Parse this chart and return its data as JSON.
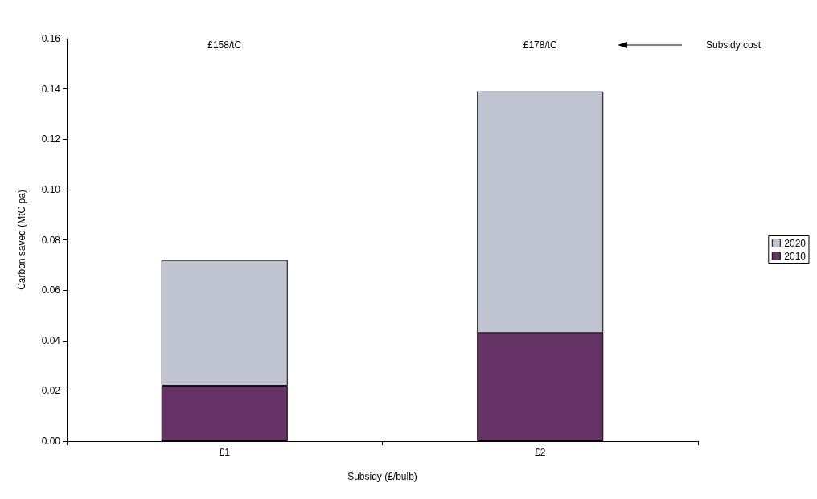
{
  "chart_data": {
    "type": "bar",
    "stacked": true,
    "xlabel": "Subsidy (£/bulb)",
    "ylabel": "Carbon saved (MtC pa)",
    "categories": [
      "£1",
      "£2"
    ],
    "series": [
      {
        "name": "2010",
        "color": "#663366",
        "values": [
          0.022,
          0.043
        ]
      },
      {
        "name": "2020",
        "color": "#c0c4d0",
        "values": [
          0.05,
          0.096
        ]
      }
    ],
    "ylim": [
      0,
      0.16
    ],
    "yticks": [
      {
        "value": 0,
        "label": "0.00"
      },
      {
        "value": 0.02,
        "label": "0.02"
      },
      {
        "value": 0.04,
        "label": "0.04"
      },
      {
        "value": 0.06,
        "label": "0.06"
      },
      {
        "value": 0.08,
        "label": "0.08"
      },
      {
        "value": 0.1,
        "label": "0.10"
      },
      {
        "value": 0.12,
        "label": "0.12"
      },
      {
        "value": 0.14,
        "label": "0.14"
      },
      {
        "value": 0.16,
        "label": "0.16"
      }
    ],
    "grid": false,
    "legend": "right",
    "annotations": [
      "£158/tC",
      "£178/tC",
      "Subsidy cost"
    ]
  }
}
